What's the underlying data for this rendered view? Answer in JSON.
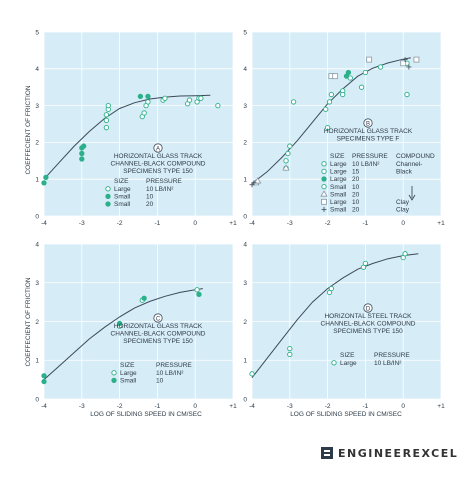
{
  "figure": {
    "ylabel": "COEFFECIENT OF FRICTION",
    "xlabel": "LOG OF SLIDING SPEED IN CM/SEC",
    "brand": "ENGINEEREXCEL",
    "colors": {
      "panel_bg": "#d6ecf6",
      "grid": "#ffffff",
      "curve": "#3b4a5a",
      "marker": "#2bb08a",
      "text": "#2d3b48",
      "brand": "#333333"
    },
    "x_ticks": [
      "-4",
      "-3",
      "-2",
      "-1",
      "0",
      "+1"
    ],
    "y_ticks": [
      "0",
      "1",
      "2",
      "3",
      "4",
      "5"
    ]
  },
  "chart_data": [
    {
      "panel": "A",
      "type": "scatter",
      "xlim": [
        -4,
        1
      ],
      "ylim": [
        0,
        5
      ],
      "note_title": [
        "HORIZONTAL GLASS TRACK",
        "CHANNEL-BLACK COMPOUND",
        "SPECIMENS TYPE 150"
      ],
      "legend_headers": [
        "SIZE",
        "PRESSURE"
      ],
      "legend_rows": [
        [
          "Large",
          "10 LB/IN²"
        ],
        [
          "Small",
          "10"
        ],
        [
          "Small",
          "20"
        ]
      ],
      "curve": {
        "x": [
          -4.0,
          -3.6,
          -3.2,
          -2.8,
          -2.4,
          -2.0,
          -1.6,
          -1.2,
          -0.8,
          -0.4,
          0.0,
          0.4
        ],
        "y": [
          1.0,
          1.45,
          1.9,
          2.3,
          2.65,
          2.92,
          3.08,
          3.18,
          3.23,
          3.26,
          3.27,
          3.28
        ]
      },
      "series": [
        {
          "name": "Large",
          "x": [
            -2.35,
            -2.35,
            -2.35,
            -2.3,
            -2.3,
            -1.4,
            -1.35,
            -1.3,
            -1.25,
            -0.85,
            -0.8,
            -0.2,
            -0.15,
            0.05,
            0.1,
            0.15,
            0.6
          ],
          "y": [
            2.4,
            2.6,
            2.75,
            2.9,
            3.0,
            2.7,
            2.8,
            3.0,
            3.1,
            3.15,
            3.2,
            3.05,
            3.15,
            3.1,
            3.2,
            3.2,
            3.0
          ]
        },
        {
          "name": "Small",
          "x": [
            -3.0,
            -3.0,
            -3.0,
            -2.95,
            -1.45,
            -1.25
          ],
          "y": [
            1.55,
            1.7,
            1.85,
            1.9,
            3.25,
            3.25
          ]
        },
        {
          "name": "Small",
          "x": [
            -4.0,
            -3.95
          ],
          "y": [
            0.9,
            1.05
          ]
        }
      ]
    },
    {
      "panel": "B",
      "type": "scatter",
      "xlim": [
        -4,
        1
      ],
      "ylim": [
        0,
        5
      ],
      "note_title": [
        "HORIZONTAL GLASS TRACK",
        "SPECIMENS TYPE F"
      ],
      "legend_headers": [
        "SIZE",
        "PRESSURE",
        "COMPOUND"
      ],
      "legend_rows": [
        [
          "Large",
          "10 LB/IN²",
          "Channel-"
        ],
        [
          "Large",
          "15",
          "Black"
        ],
        [
          "Large",
          "20",
          ""
        ],
        [
          "Small",
          "10",
          ""
        ],
        [
          "Small",
          "20",
          ""
        ],
        [
          "Large",
          "10",
          "Clay"
        ],
        [
          "Small",
          "20",
          "Clay"
        ]
      ],
      "curve": {
        "x": [
          -4.0,
          -3.6,
          -3.2,
          -2.8,
          -2.4,
          -2.0,
          -1.6,
          -1.2,
          -0.8,
          -0.4,
          0.0,
          0.2
        ],
        "y": [
          0.88,
          1.2,
          1.6,
          2.05,
          2.55,
          3.05,
          3.45,
          3.8,
          4.02,
          4.16,
          4.26,
          4.3
        ]
      },
      "series": [
        {
          "name": "Large 10",
          "x": [
            -3.1,
            -3.05,
            -3.0,
            -2.05,
            -1.95,
            -1.6,
            -1.4,
            -1.0,
            -0.6,
            0.1
          ],
          "y": [
            1.5,
            1.7,
            1.9,
            2.9,
            3.1,
            3.4,
            3.75,
            3.9,
            4.05,
            3.3
          ]
        },
        {
          "name": "Large 15",
          "x": [
            -2.0,
            -1.6
          ],
          "y": [
            2.4,
            3.3
          ]
        },
        {
          "name": "Large 20",
          "x": [
            -1.5,
            -1.45
          ],
          "y": [
            3.8,
            3.9
          ]
        },
        {
          "name": "Small 10",
          "x": [
            -3.1,
            -2.9,
            -1.9,
            -1.1,
            0.1
          ],
          "y": [
            1.3,
            3.1,
            3.3,
            3.5,
            4.15
          ]
        },
        {
          "name": "Small 20",
          "x": [
            -3.9,
            -3.85,
            -3.1
          ],
          "y": [
            0.9,
            0.95,
            1.3
          ]
        },
        {
          "name": "Large 10 Clay",
          "x": [
            -1.9,
            -1.8,
            -0.9,
            0.0,
            0.35
          ],
          "y": [
            3.8,
            3.8,
            4.25,
            4.15,
            4.25
          ]
        },
        {
          "name": "Small 20 Clay",
          "x": [
            -4.0,
            -3.95,
            0.05,
            0.15
          ],
          "y": [
            0.85,
            0.9,
            4.25,
            4.05
          ]
        }
      ]
    },
    {
      "panel": "C",
      "type": "scatter",
      "xlim": [
        -4,
        1
      ],
      "ylim": [
        0,
        4
      ],
      "note_title": [
        "HORIZONTAL GLASS TRACK",
        "CHANNEL-BLACK COMPOUND",
        "SPECIMENS TYPE 150"
      ],
      "legend_headers": [
        "SIZE",
        "PRESSURE"
      ],
      "legend_rows": [
        [
          "Large",
          "10 LB/IN²"
        ],
        [
          "Small",
          "10"
        ]
      ],
      "curve": {
        "x": [
          -4.0,
          -3.6,
          -3.2,
          -2.8,
          -2.4,
          -2.0,
          -1.6,
          -1.2,
          -0.8,
          -0.4,
          0.0,
          0.2
        ],
        "y": [
          0.5,
          0.85,
          1.2,
          1.55,
          1.85,
          2.12,
          2.35,
          2.52,
          2.65,
          2.75,
          2.82,
          2.85
        ]
      },
      "series": [
        {
          "name": "Large",
          "x": [
            -2.0,
            -1.4,
            0.05
          ],
          "y": [
            1.88,
            2.55,
            2.82
          ]
        },
        {
          "name": "Small",
          "x": [
            -4.0,
            -4.0,
            -2.0,
            -1.35,
            0.1
          ],
          "y": [
            0.45,
            0.6,
            1.95,
            2.6,
            2.7
          ]
        }
      ]
    },
    {
      "panel": "D",
      "type": "scatter",
      "xlim": [
        -4,
        1
      ],
      "ylim": [
        0,
        4
      ],
      "note_title": [
        "HORIZONTAL STEEL TRACK",
        "CHANNEL-BLACK COMPOUND",
        "SPECIMENS TYPE 150"
      ],
      "legend_headers": [
        "SIZE",
        "PRESSURE"
      ],
      "legend_rows": [
        [
          "Large",
          "10 LB/IN²"
        ]
      ],
      "curve": {
        "x": [
          -4.0,
          -3.6,
          -3.2,
          -2.8,
          -2.4,
          -2.0,
          -1.6,
          -1.2,
          -0.8,
          -0.4,
          0.0,
          0.4
        ],
        "y": [
          0.55,
          1.05,
          1.55,
          2.05,
          2.5,
          2.85,
          3.12,
          3.35,
          3.5,
          3.62,
          3.7,
          3.75
        ]
      },
      "series": [
        {
          "name": "Large",
          "x": [
            -4.0,
            -3.0,
            -3.0,
            -1.95,
            -1.9,
            -1.05,
            -1.0,
            0.0,
            0.05
          ],
          "y": [
            0.65,
            1.15,
            1.3,
            2.75,
            2.85,
            3.4,
            3.5,
            3.65,
            3.75
          ]
        }
      ]
    }
  ]
}
